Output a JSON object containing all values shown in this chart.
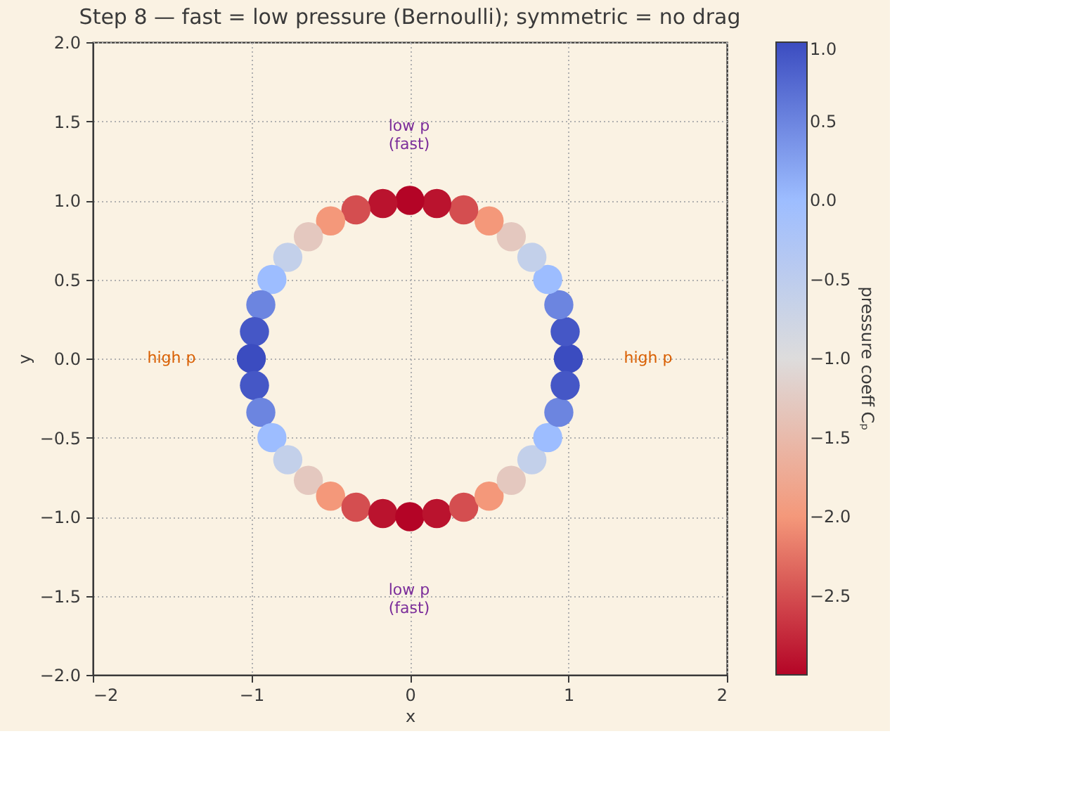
{
  "chart_data": {
    "type": "scatter",
    "title": "Step 8 — fast = low pressure (Bernoulli); symmetric = no drag",
    "xlabel": "x",
    "ylabel": "y",
    "clabel": "pressure coeff Cₚ",
    "x": [
      1.0,
      0.98,
      0.94,
      0.87,
      0.77,
      0.64,
      0.5,
      0.34,
      0.17,
      0.0,
      -0.17,
      -0.34,
      -0.5,
      -0.64,
      -0.77,
      -0.87,
      -0.94,
      -0.98,
      -1.0,
      -0.98,
      -0.94,
      -0.87,
      -0.77,
      -0.64,
      -0.5,
      -0.34,
      -0.17,
      0.0,
      0.17,
      0.34,
      0.5,
      0.64,
      0.77,
      0.87,
      0.94,
      0.98
    ],
    "values": [
      0.0,
      0.17,
      0.34,
      0.5,
      0.64,
      0.77,
      0.87,
      0.94,
      0.98,
      1.0,
      0.98,
      0.94,
      0.87,
      0.77,
      0.64,
      0.5,
      0.34,
      0.17,
      0.0,
      -0.17,
      -0.34,
      -0.5,
      -0.64,
      -0.77,
      -0.87,
      -0.94,
      -0.98,
      -1.0,
      -0.98,
      -0.94,
      -0.87,
      -0.77,
      -0.64,
      -0.5,
      -0.34,
      -0.17
    ],
    "cvalues": [
      1.0,
      0.9,
      0.5,
      0.0,
      -0.6,
      -1.3,
      -2.0,
      -2.5,
      -2.9,
      -3.0,
      -2.9,
      -2.5,
      -2.0,
      -1.3,
      -0.6,
      0.0,
      0.5,
      0.9,
      1.0,
      0.9,
      0.5,
      0.0,
      -0.6,
      -1.3,
      -2.0,
      -2.5,
      -2.9,
      -3.0,
      -2.9,
      -2.5,
      -2.0,
      -1.3,
      -0.6,
      0.0,
      0.5,
      0.9
    ],
    "xlim": [
      -2,
      2
    ],
    "ylim": [
      -2,
      2
    ],
    "xticks": [
      {
        "value": -2,
        "label": "−2"
      },
      {
        "value": -1,
        "label": "−1"
      },
      0,
      1,
      2
    ],
    "yticks": [
      {
        "value": -2,
        "label": "−2.0"
      },
      {
        "value": -1.5,
        "label": "−1.5"
      },
      {
        "value": -1,
        "label": "−1.0"
      },
      {
        "value": -0.5,
        "label": "−0.5"
      },
      {
        "value": 0,
        "label": "0.0"
      },
      0.5,
      {
        "value": 1,
        "label": "1.0"
      },
      1.5,
      {
        "value": 2,
        "label": "2.0"
      }
    ],
    "clim": [
      -3,
      1
    ],
    "cticks": [
      {
        "value": 1,
        "label": "1.0"
      },
      0.5,
      {
        "value": 0,
        "label": "0.0"
      },
      {
        "value": -0.5,
        "label": "−0.5"
      },
      {
        "value": -1,
        "label": "−1.0"
      },
      {
        "value": -1.5,
        "label": "−1.5"
      },
      {
        "value": -2,
        "label": "−2.0"
      },
      {
        "value": -2.5,
        "label": "−2.5"
      }
    ],
    "annotations": [
      "low p\n(fast)",
      "low p\n(fast)",
      "high p",
      "high p"
    ],
    "grid": true
  }
}
